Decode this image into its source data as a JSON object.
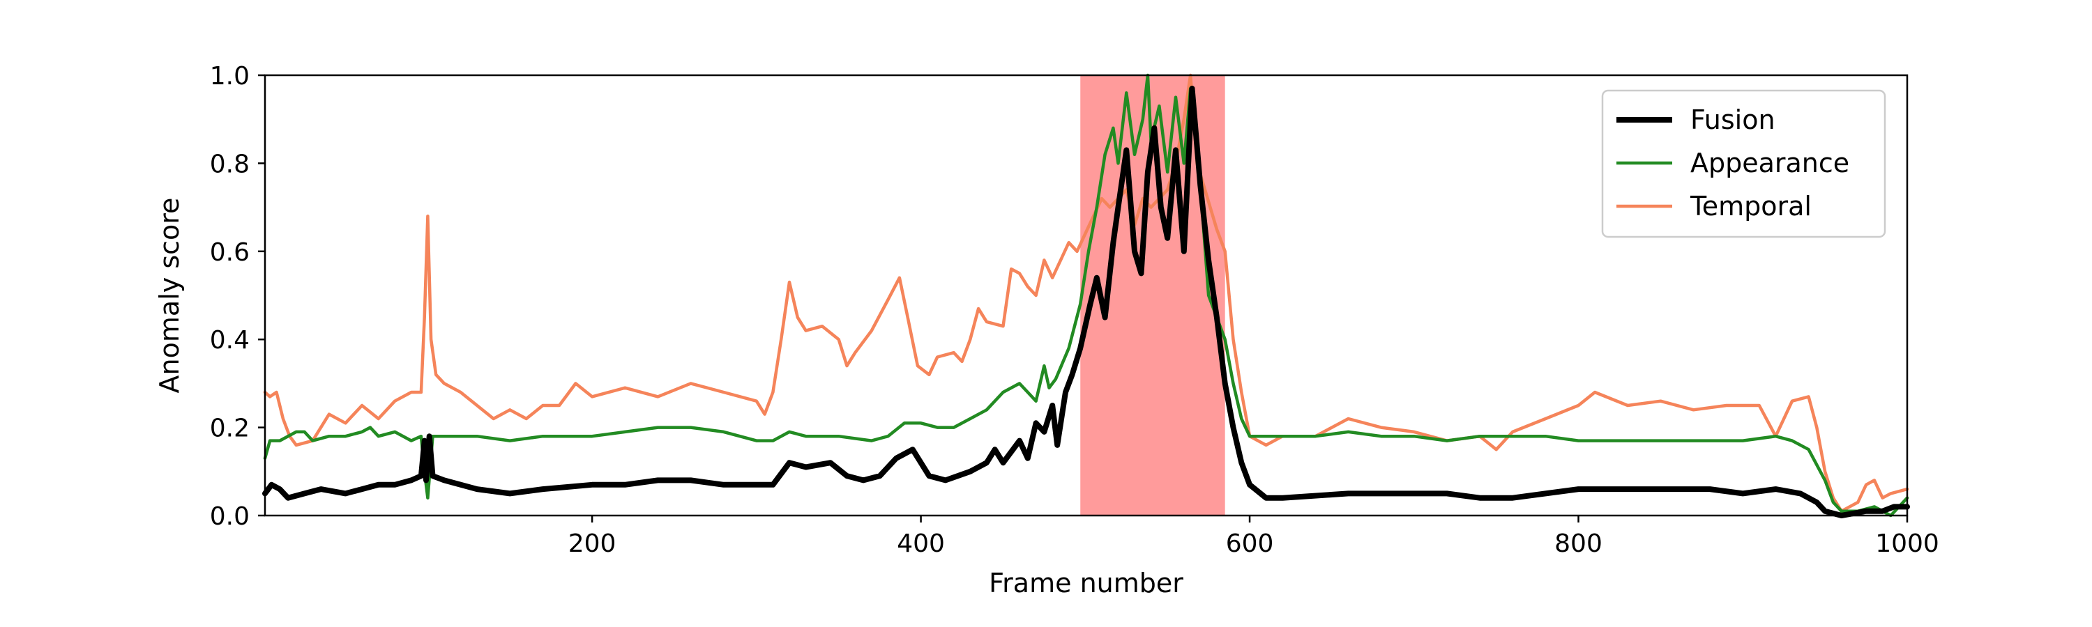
{
  "chart_data": {
    "type": "line",
    "title": "",
    "xlabel": "Frame number",
    "ylabel": "Anomaly score",
    "xlim": [
      1,
      1000
    ],
    "ylim": [
      0.0,
      1.0
    ],
    "xticks": [
      200,
      400,
      600,
      800,
      1000
    ],
    "yticks": [
      0.0,
      0.2,
      0.4,
      0.6,
      0.8,
      1.0
    ],
    "ytick_labels": [
      "0.0",
      "0.2",
      "0.4",
      "0.6",
      "0.8",
      "1.0"
    ],
    "grid": false,
    "legend_position": "top-right",
    "highlight_region": {
      "x": [
        497,
        585
      ],
      "color": "#ff9b9b"
    },
    "series": [
      {
        "name": "Fusion",
        "color": "#000000",
        "style": "thick",
        "points": [
          [
            1,
            0.05
          ],
          [
            5,
            0.07
          ],
          [
            10,
            0.06
          ],
          [
            15,
            0.04
          ],
          [
            25,
            0.05
          ],
          [
            35,
            0.06
          ],
          [
            50,
            0.05
          ],
          [
            60,
            0.06
          ],
          [
            70,
            0.07
          ],
          [
            80,
            0.07
          ],
          [
            90,
            0.08
          ],
          [
            96,
            0.09
          ],
          [
            98,
            0.17
          ],
          [
            99,
            0.08
          ],
          [
            101,
            0.18
          ],
          [
            103,
            0.09
          ],
          [
            110,
            0.08
          ],
          [
            130,
            0.06
          ],
          [
            150,
            0.05
          ],
          [
            170,
            0.06
          ],
          [
            200,
            0.07
          ],
          [
            220,
            0.07
          ],
          [
            240,
            0.08
          ],
          [
            260,
            0.08
          ],
          [
            280,
            0.07
          ],
          [
            300,
            0.07
          ],
          [
            310,
            0.07
          ],
          [
            320,
            0.12
          ],
          [
            330,
            0.11
          ],
          [
            345,
            0.12
          ],
          [
            355,
            0.09
          ],
          [
            365,
            0.08
          ],
          [
            375,
            0.09
          ],
          [
            385,
            0.13
          ],
          [
            395,
            0.15
          ],
          [
            405,
            0.09
          ],
          [
            415,
            0.08
          ],
          [
            430,
            0.1
          ],
          [
            440,
            0.12
          ],
          [
            445,
            0.15
          ],
          [
            450,
            0.12
          ],
          [
            460,
            0.17
          ],
          [
            465,
            0.13
          ],
          [
            470,
            0.21
          ],
          [
            475,
            0.19
          ],
          [
            480,
            0.25
          ],
          [
            483,
            0.16
          ],
          [
            488,
            0.28
          ],
          [
            492,
            0.32
          ],
          [
            497,
            0.38
          ],
          [
            503,
            0.48
          ],
          [
            507,
            0.54
          ],
          [
            512,
            0.45
          ],
          [
            517,
            0.62
          ],
          [
            520,
            0.7
          ],
          [
            525,
            0.83
          ],
          [
            530,
            0.6
          ],
          [
            534,
            0.55
          ],
          [
            538,
            0.78
          ],
          [
            542,
            0.88
          ],
          [
            546,
            0.7
          ],
          [
            550,
            0.63
          ],
          [
            555,
            0.83
          ],
          [
            560,
            0.6
          ],
          [
            565,
            0.97
          ],
          [
            570,
            0.75
          ],
          [
            575,
            0.58
          ],
          [
            580,
            0.45
          ],
          [
            585,
            0.3
          ],
          [
            590,
            0.2
          ],
          [
            595,
            0.12
          ],
          [
            600,
            0.07
          ],
          [
            610,
            0.04
          ],
          [
            620,
            0.04
          ],
          [
            660,
            0.05
          ],
          [
            700,
            0.05
          ],
          [
            720,
            0.05
          ],
          [
            740,
            0.04
          ],
          [
            760,
            0.04
          ],
          [
            780,
            0.05
          ],
          [
            800,
            0.06
          ],
          [
            820,
            0.06
          ],
          [
            850,
            0.06
          ],
          [
            880,
            0.06
          ],
          [
            900,
            0.05
          ],
          [
            920,
            0.06
          ],
          [
            935,
            0.05
          ],
          [
            945,
            0.03
          ],
          [
            950,
            0.01
          ],
          [
            960,
            0.0
          ],
          [
            975,
            0.01
          ],
          [
            985,
            0.01
          ],
          [
            992,
            0.02
          ],
          [
            1000,
            0.02
          ]
        ]
      },
      {
        "name": "Appearance",
        "color": "#228b22",
        "style": "thin",
        "points": [
          [
            1,
            0.13
          ],
          [
            4,
            0.17
          ],
          [
            10,
            0.17
          ],
          [
            20,
            0.19
          ],
          [
            25,
            0.19
          ],
          [
            30,
            0.17
          ],
          [
            40,
            0.18
          ],
          [
            50,
            0.18
          ],
          [
            60,
            0.19
          ],
          [
            65,
            0.2
          ],
          [
            70,
            0.18
          ],
          [
            80,
            0.19
          ],
          [
            90,
            0.17
          ],
          [
            96,
            0.18
          ],
          [
            98,
            0.1
          ],
          [
            100,
            0.04
          ],
          [
            103,
            0.18
          ],
          [
            110,
            0.18
          ],
          [
            130,
            0.18
          ],
          [
            150,
            0.17
          ],
          [
            170,
            0.18
          ],
          [
            200,
            0.18
          ],
          [
            220,
            0.19
          ],
          [
            240,
            0.2
          ],
          [
            260,
            0.2
          ],
          [
            280,
            0.19
          ],
          [
            300,
            0.17
          ],
          [
            310,
            0.17
          ],
          [
            320,
            0.19
          ],
          [
            330,
            0.18
          ],
          [
            350,
            0.18
          ],
          [
            370,
            0.17
          ],
          [
            380,
            0.18
          ],
          [
            390,
            0.21
          ],
          [
            400,
            0.21
          ],
          [
            410,
            0.2
          ],
          [
            420,
            0.2
          ],
          [
            430,
            0.22
          ],
          [
            440,
            0.24
          ],
          [
            450,
            0.28
          ],
          [
            460,
            0.3
          ],
          [
            465,
            0.28
          ],
          [
            470,
            0.26
          ],
          [
            475,
            0.34
          ],
          [
            478,
            0.29
          ],
          [
            482,
            0.31
          ],
          [
            490,
            0.38
          ],
          [
            497,
            0.48
          ],
          [
            502,
            0.6
          ],
          [
            507,
            0.7
          ],
          [
            512,
            0.82
          ],
          [
            517,
            0.88
          ],
          [
            520,
            0.8
          ],
          [
            525,
            0.96
          ],
          [
            530,
            0.82
          ],
          [
            535,
            0.9
          ],
          [
            538,
            1.0
          ],
          [
            540,
            0.85
          ],
          [
            545,
            0.93
          ],
          [
            550,
            0.78
          ],
          [
            555,
            0.95
          ],
          [
            560,
            0.8
          ],
          [
            564,
            0.97
          ],
          [
            570,
            0.75
          ],
          [
            575,
            0.5
          ],
          [
            580,
            0.45
          ],
          [
            585,
            0.4
          ],
          [
            590,
            0.3
          ],
          [
            595,
            0.22
          ],
          [
            600,
            0.18
          ],
          [
            620,
            0.18
          ],
          [
            640,
            0.18
          ],
          [
            660,
            0.19
          ],
          [
            680,
            0.18
          ],
          [
            700,
            0.18
          ],
          [
            720,
            0.17
          ],
          [
            740,
            0.18
          ],
          [
            760,
            0.18
          ],
          [
            780,
            0.18
          ],
          [
            800,
            0.17
          ],
          [
            820,
            0.17
          ],
          [
            850,
            0.17
          ],
          [
            880,
            0.17
          ],
          [
            900,
            0.17
          ],
          [
            920,
            0.18
          ],
          [
            930,
            0.17
          ],
          [
            940,
            0.15
          ],
          [
            950,
            0.08
          ],
          [
            955,
            0.03
          ],
          [
            960,
            0.01
          ],
          [
            970,
            0.01
          ],
          [
            980,
            0.02
          ],
          [
            990,
            0.0
          ],
          [
            1000,
            0.04
          ]
        ]
      },
      {
        "name": "Temporal",
        "color": "#f5845a",
        "style": "thin",
        "points": [
          [
            1,
            0.28
          ],
          [
            4,
            0.27
          ],
          [
            8,
            0.28
          ],
          [
            12,
            0.22
          ],
          [
            16,
            0.18
          ],
          [
            20,
            0.16
          ],
          [
            30,
            0.17
          ],
          [
            40,
            0.23
          ],
          [
            50,
            0.21
          ],
          [
            60,
            0.25
          ],
          [
            70,
            0.22
          ],
          [
            80,
            0.26
          ],
          [
            90,
            0.28
          ],
          [
            96,
            0.28
          ],
          [
            98,
            0.45
          ],
          [
            100,
            0.68
          ],
          [
            102,
            0.4
          ],
          [
            105,
            0.32
          ],
          [
            110,
            0.3
          ],
          [
            120,
            0.28
          ],
          [
            130,
            0.25
          ],
          [
            140,
            0.22
          ],
          [
            150,
            0.24
          ],
          [
            160,
            0.22
          ],
          [
            170,
            0.25
          ],
          [
            180,
            0.25
          ],
          [
            190,
            0.3
          ],
          [
            200,
            0.27
          ],
          [
            220,
            0.29
          ],
          [
            240,
            0.27
          ],
          [
            260,
            0.3
          ],
          [
            280,
            0.28
          ],
          [
            300,
            0.26
          ],
          [
            305,
            0.23
          ],
          [
            310,
            0.28
          ],
          [
            315,
            0.4
          ],
          [
            320,
            0.53
          ],
          [
            325,
            0.45
          ],
          [
            330,
            0.42
          ],
          [
            340,
            0.43
          ],
          [
            350,
            0.4
          ],
          [
            355,
            0.34
          ],
          [
            360,
            0.37
          ],
          [
            370,
            0.42
          ],
          [
            380,
            0.49
          ],
          [
            387,
            0.54
          ],
          [
            392,
            0.45
          ],
          [
            398,
            0.34
          ],
          [
            405,
            0.32
          ],
          [
            410,
            0.36
          ],
          [
            420,
            0.37
          ],
          [
            425,
            0.35
          ],
          [
            430,
            0.4
          ],
          [
            435,
            0.47
          ],
          [
            440,
            0.44
          ],
          [
            450,
            0.43
          ],
          [
            455,
            0.56
          ],
          [
            460,
            0.55
          ],
          [
            465,
            0.52
          ],
          [
            470,
            0.5
          ],
          [
            475,
            0.58
          ],
          [
            480,
            0.54
          ],
          [
            485,
            0.58
          ],
          [
            490,
            0.62
          ],
          [
            495,
            0.6
          ],
          [
            500,
            0.64
          ],
          [
            505,
            0.68
          ],
          [
            510,
            0.72
          ],
          [
            515,
            0.7
          ],
          [
            520,
            0.72
          ],
          [
            525,
            0.74
          ],
          [
            530,
            0.66
          ],
          [
            535,
            0.72
          ],
          [
            540,
            0.7
          ],
          [
            545,
            0.72
          ],
          [
            550,
            0.74
          ],
          [
            555,
            0.8
          ],
          [
            560,
            0.9
          ],
          [
            564,
            1.0
          ],
          [
            568,
            0.8
          ],
          [
            572,
            0.75
          ],
          [
            576,
            0.7
          ],
          [
            580,
            0.65
          ],
          [
            585,
            0.6
          ],
          [
            590,
            0.4
          ],
          [
            595,
            0.28
          ],
          [
            600,
            0.18
          ],
          [
            610,
            0.16
          ],
          [
            620,
            0.18
          ],
          [
            640,
            0.18
          ],
          [
            650,
            0.2
          ],
          [
            660,
            0.22
          ],
          [
            680,
            0.2
          ],
          [
            700,
            0.19
          ],
          [
            720,
            0.17
          ],
          [
            740,
            0.18
          ],
          [
            750,
            0.15
          ],
          [
            760,
            0.19
          ],
          [
            780,
            0.22
          ],
          [
            800,
            0.25
          ],
          [
            810,
            0.28
          ],
          [
            830,
            0.25
          ],
          [
            850,
            0.26
          ],
          [
            870,
            0.24
          ],
          [
            890,
            0.25
          ],
          [
            910,
            0.25
          ],
          [
            920,
            0.18
          ],
          [
            930,
            0.26
          ],
          [
            940,
            0.27
          ],
          [
            945,
            0.2
          ],
          [
            950,
            0.1
          ],
          [
            955,
            0.04
          ],
          [
            960,
            0.01
          ],
          [
            970,
            0.03
          ],
          [
            975,
            0.07
          ],
          [
            980,
            0.08
          ],
          [
            985,
            0.04
          ],
          [
            990,
            0.05
          ],
          [
            1000,
            0.06
          ]
        ]
      }
    ]
  }
}
